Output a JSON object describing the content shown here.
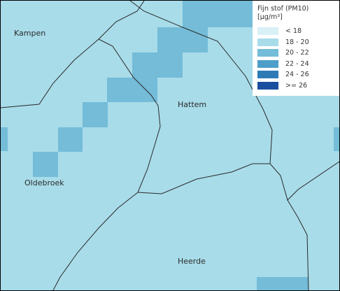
{
  "map": {
    "background_color": "#a8dce9",
    "places": [
      {
        "id": "kampen",
        "name": "Kampen"
      },
      {
        "id": "hattem",
        "name": "Hattem"
      },
      {
        "id": "oldebroek",
        "name": "Oldebroek"
      },
      {
        "id": "heerde",
        "name": "Heerde"
      }
    ]
  },
  "legend": {
    "title_line1": "Fijn stof (PM10)",
    "title_line2": "[µg/m³]",
    "items": [
      {
        "label": "< 18",
        "color": "#d8f0f6"
      },
      {
        "label": "18 - 20",
        "color": "#a8dce9"
      },
      {
        "label": "20 - 22",
        "color": "#74bcd8"
      },
      {
        "label": "22 - 24",
        "color": "#4d9fc9"
      },
      {
        "label": "24 - 26",
        "color": "#2d7bb6"
      },
      {
        "label": ">= 26",
        "color": "#1a4fa0"
      }
    ]
  }
}
